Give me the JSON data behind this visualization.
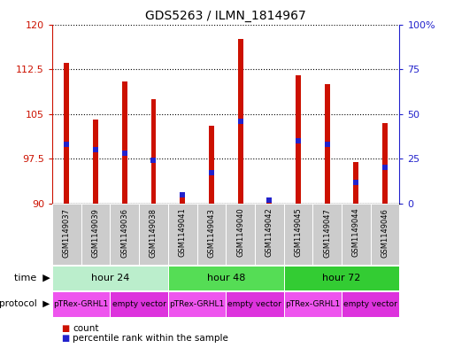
{
  "title": "GDS5263 / ILMN_1814967",
  "samples": [
    "GSM1149037",
    "GSM1149039",
    "GSM1149036",
    "GSM1149038",
    "GSM1149041",
    "GSM1149043",
    "GSM1149040",
    "GSM1149042",
    "GSM1149045",
    "GSM1149047",
    "GSM1149044",
    "GSM1149046"
  ],
  "count_values": [
    113.5,
    104.0,
    110.5,
    107.5,
    91.5,
    103.0,
    117.5,
    90.5,
    111.5,
    110.0,
    97.0,
    103.5
  ],
  "percentile_values": [
    33,
    30,
    28,
    24,
    5,
    17,
    46,
    2,
    35,
    33,
    12,
    20
  ],
  "ymin": 90,
  "ymax": 120,
  "yticks": [
    90,
    97.5,
    105,
    112.5,
    120
  ],
  "ytick_labels": [
    "90",
    "97.5",
    "105",
    "112.5",
    "120"
  ],
  "right_yticks": [
    0,
    25,
    50,
    75,
    100
  ],
  "right_ytick_labels": [
    "0",
    "25",
    "50",
    "75",
    "100%"
  ],
  "bar_color": "#cc1100",
  "percentile_color": "#2222cc",
  "bar_width": 0.18,
  "time_groups": [
    {
      "label": "hour 24",
      "start": 0,
      "end": 4,
      "color": "#bbeecc"
    },
    {
      "label": "hour 48",
      "start": 4,
      "end": 8,
      "color": "#55dd55"
    },
    {
      "label": "hour 72",
      "start": 8,
      "end": 12,
      "color": "#33cc33"
    }
  ],
  "protocol_groups": [
    {
      "label": "pTRex-GRHL1",
      "start": 0,
      "end": 2,
      "color": "#ee55ee"
    },
    {
      "label": "empty vector",
      "start": 2,
      "end": 4,
      "color": "#dd33dd"
    },
    {
      "label": "pTRex-GRHL1",
      "start": 4,
      "end": 6,
      "color": "#ee55ee"
    },
    {
      "label": "empty vector",
      "start": 6,
      "end": 8,
      "color": "#dd33dd"
    },
    {
      "label": "pTRex-GRHL1",
      "start": 8,
      "end": 10,
      "color": "#ee55ee"
    },
    {
      "label": "empty vector",
      "start": 10,
      "end": 12,
      "color": "#dd33dd"
    }
  ],
  "left_axis_color": "#cc1100",
  "right_axis_color": "#2222cc",
  "grid_color": "#000000",
  "sample_label_bg": "#cccccc",
  "border_color": "#888888"
}
